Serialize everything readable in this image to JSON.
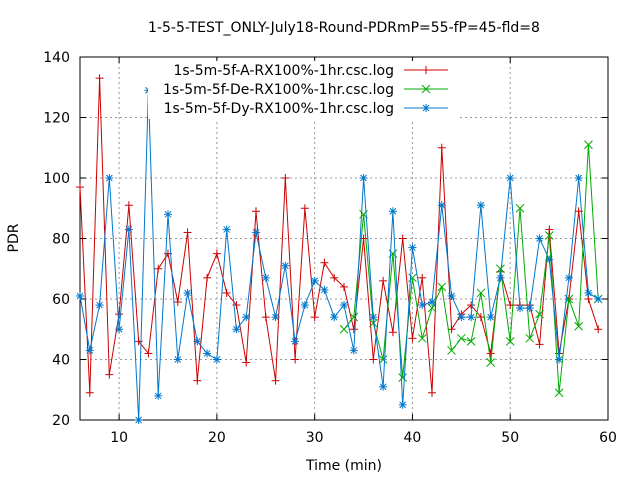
{
  "chart_data": {
    "type": "line",
    "title": "1-5-5-TEST_ONLY-July18-Round-PDRmP=55-fP=45-fld=8",
    "xlabel": "Time (min)",
    "ylabel": "PDR",
    "xlim": [
      6,
      60
    ],
    "ylim": [
      20,
      140
    ],
    "xticks": [
      10,
      20,
      30,
      40,
      50,
      60
    ],
    "yticks": [
      20,
      40,
      60,
      80,
      100,
      120,
      140
    ],
    "grid": true,
    "legend_position": "top-right",
    "series": [
      {
        "name": "1s-5m-5f-A-RX100%-1hr.csc.log",
        "color": "#cc0000",
        "marker": "plus",
        "x": [
          6,
          7,
          8,
          9,
          10,
          11,
          12,
          13,
          14,
          15,
          16,
          17,
          18,
          19,
          20,
          21,
          22,
          23,
          24,
          25,
          26,
          27,
          28,
          29,
          30,
          31,
          32,
          33,
          34,
          35,
          36,
          37,
          38,
          39,
          40,
          41,
          42,
          43,
          44,
          45,
          46,
          47,
          48,
          49,
          50,
          51,
          52,
          53,
          54,
          55,
          56,
          57,
          58,
          59
        ],
        "y": [
          97,
          29,
          133,
          35,
          55,
          91,
          46,
          42,
          70,
          75,
          59,
          82,
          33,
          67,
          75,
          62,
          58,
          39,
          89,
          54,
          33,
          100,
          40,
          90,
          54,
          72,
          67,
          64,
          50,
          80,
          40,
          66,
          49,
          80,
          47,
          67,
          29,
          110,
          50,
          55,
          58,
          54,
          42,
          69,
          58,
          58,
          58,
          45,
          83,
          42,
          60,
          89,
          60,
          50
        ]
      },
      {
        "name": "1s-5m-5f-De-RX100%-1hr.csc.log",
        "color": "#00aa00",
        "marker": "cross",
        "x": [
          33,
          34,
          35,
          36,
          37,
          38,
          39,
          40,
          41,
          42,
          43,
          44,
          45,
          46,
          47,
          48,
          49,
          50,
          51,
          52,
          53,
          54,
          55,
          56,
          57,
          58,
          59
        ],
        "y": [
          50,
          54,
          88,
          52,
          40,
          75,
          34,
          67,
          47,
          57,
          64,
          43,
          47,
          46,
          62,
          39,
          70,
          46,
          90,
          47,
          55,
          81,
          29,
          60,
          51,
          111,
          60
        ]
      },
      {
        "name": "1s-5m-5f-Dy-RX100%-1hr.csc.log",
        "color": "#0077cc",
        "marker": "star",
        "x": [
          6,
          7,
          8,
          9,
          10,
          11,
          12,
          13,
          14,
          15,
          16,
          17,
          18,
          19,
          20,
          21,
          22,
          23,
          24,
          25,
          26,
          27,
          28,
          29,
          30,
          31,
          32,
          33,
          34,
          35,
          36,
          37,
          38,
          39,
          40,
          41,
          42,
          43,
          44,
          45,
          46,
          47,
          48,
          49,
          50,
          51,
          52,
          53,
          54,
          55,
          56,
          57,
          58,
          59
        ],
        "y": [
          61,
          43,
          58,
          100,
          50,
          83,
          20,
          129,
          28,
          88,
          40,
          62,
          46,
          42,
          40,
          83,
          50,
          54,
          82,
          67,
          54,
          71,
          46,
          58,
          66,
          63,
          54,
          58,
          43,
          100,
          54,
          31,
          89,
          25,
          77,
          58,
          59,
          91,
          61,
          54,
          54,
          91,
          54,
          67,
          100,
          57,
          57,
          80,
          73,
          40,
          67,
          100,
          62,
          60
        ]
      }
    ]
  }
}
